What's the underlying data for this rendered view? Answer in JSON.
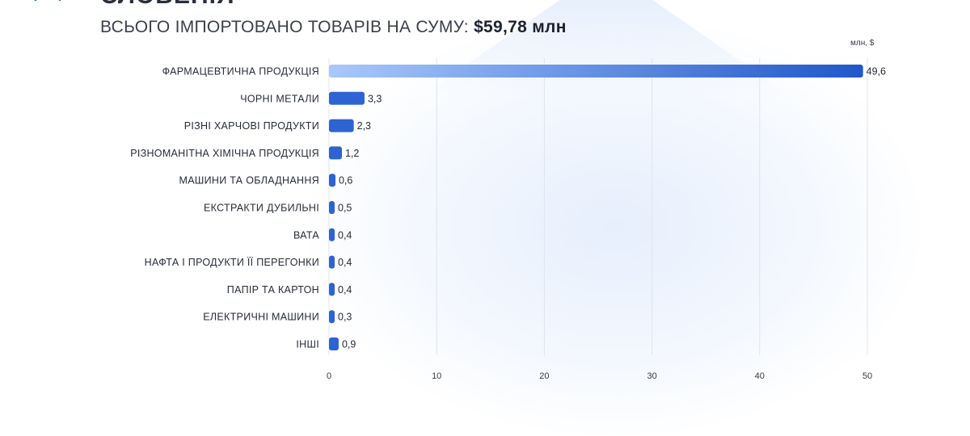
{
  "header": {
    "title": "СЛОВЕНІЯ",
    "subtitle_prefix": "ВСЬОГО ІМПОРТОВАНО ТОВАРІВ НА СУМУ:",
    "subtitle_value": "$59,78 млн"
  },
  "colors": {
    "bar_start": "#a9c8fb",
    "bar_end": "#1f57c9",
    "small_bar": "#2d63d3",
    "grid": "#dfe4ec"
  },
  "chart_data": {
    "type": "bar",
    "orientation": "horizontal",
    "unit_label": "млн, $",
    "categories": [
      "ФАРМАЦЕВТИЧНА ПРОДУКЦІЯ",
      "ЧОРНІ МЕТАЛИ",
      "РІЗНІ ХАРЧОВІ ПРОДУКТИ",
      "РІЗНОМАНІТНА ХІМІЧНА ПРОДУКЦІЯ",
      "МАШИНИ ТА ОБЛАДНАННЯ",
      "ЕКСТРАКТИ ДУБИЛЬНІ",
      "ВАТА",
      "НАФТА І ПРОДУКТИ ЇЇ ПЕРЕГОНКИ",
      "ПАПІР ТА КАРТОН",
      "ЕЛЕКТРИЧНІ МАШИНИ",
      "ІНШІ"
    ],
    "values": [
      49.6,
      3.3,
      2.3,
      1.2,
      0.6,
      0.5,
      0.4,
      0.4,
      0.4,
      0.3,
      0.9
    ],
    "value_labels": [
      "49,6",
      "3,3",
      "2,3",
      "1,2",
      "0,6",
      "0,5",
      "0,4",
      "0,4",
      "0,4",
      "0,3",
      "0,9"
    ],
    "xlim": [
      0,
      50
    ],
    "xticks": [
      0,
      10,
      20,
      30,
      40,
      50
    ],
    "grid": true
  }
}
